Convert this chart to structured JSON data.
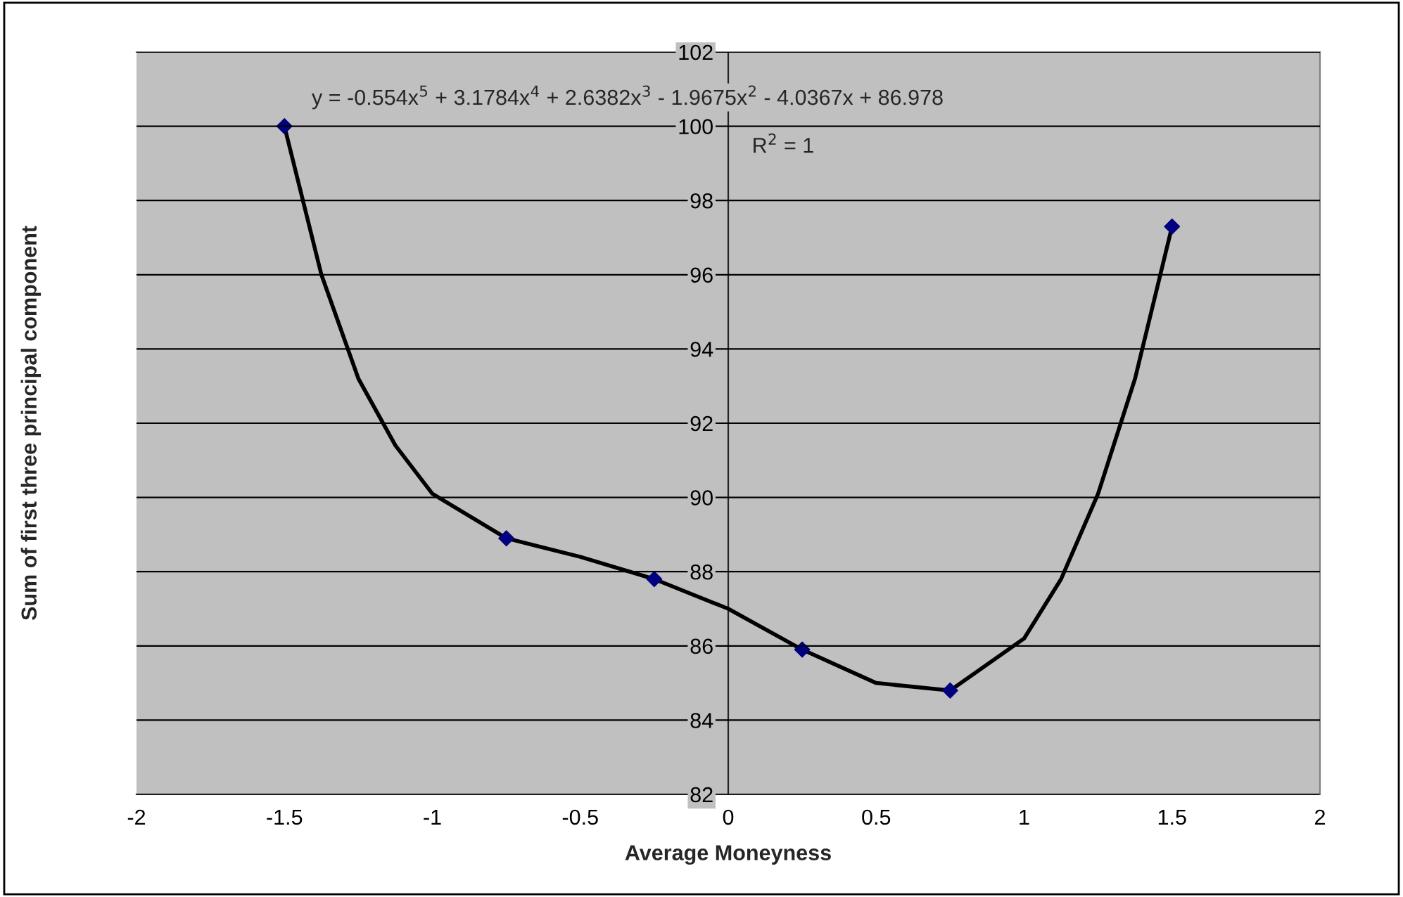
{
  "chart_data": {
    "type": "scatter",
    "xlabel": "Average Moneyness",
    "ylabel": "Sum of first three principal component",
    "series": [
      {
        "color": "#000080",
        "marker": "diamond",
        "x": [
          -1.5,
          -0.75,
          -0.25,
          0.25,
          0.75,
          1.5
        ],
        "values": [
          100.0,
          88.9,
          87.8,
          85.9,
          84.8,
          97.3
        ]
      },
      {
        "type": "line",
        "color": "#000000",
        "marker": "none",
        "line_style": "solid",
        "x": [
          -1.5,
          -1.375,
          -1.25,
          -1.125,
          -1.0,
          -0.75,
          -0.5,
          -0.25,
          0.0,
          0.25,
          0.5,
          0.75,
          1.0,
          1.125,
          1.25,
          1.375,
          1.5
        ],
        "values": [
          100.0,
          96.0,
          93.2,
          91.4,
          90.1,
          88.9,
          88.4,
          87.8,
          87.0,
          85.9,
          85.0,
          84.8,
          86.2,
          87.8,
          90.1,
          93.2,
          97.3
        ]
      }
    ],
    "annotations": [
      "y = -0.554x$^{5}$ + 3.1784x$^{4}$ + 2.6382x$^{3}$ - 1.9675x$^{2}$ - 4.0367x + 86.978",
      "R$^{2}$ = 1"
    ],
    "xlim": [
      -2,
      2
    ],
    "xticks": [
      -2,
      -1.5,
      -1,
      -0.5,
      0,
      0.5,
      1,
      1.5,
      2
    ],
    "ylim": [
      82,
      102
    ],
    "yticks": [
      82,
      84,
      86,
      88,
      90,
      92,
      94,
      96,
      98,
      100,
      102
    ],
    "grid": "y",
    "legend": false
  }
}
